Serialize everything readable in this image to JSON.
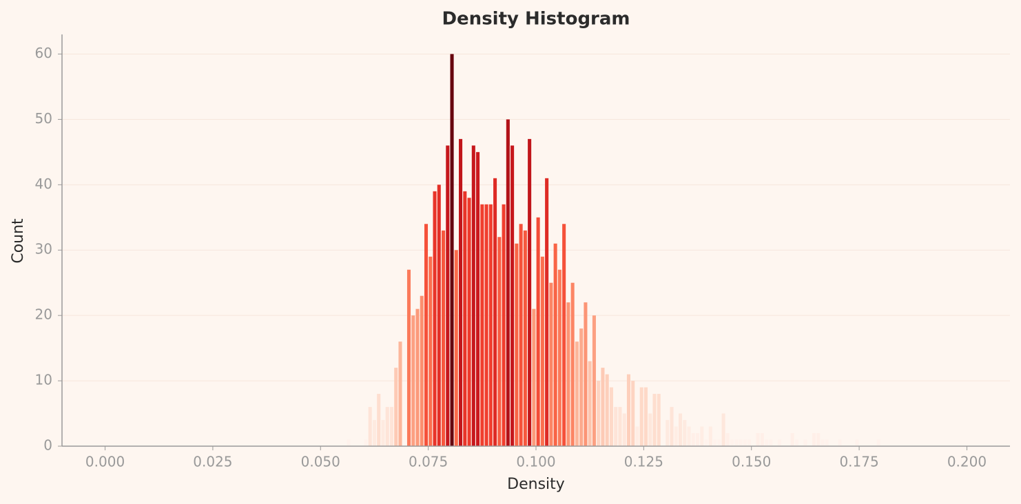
{
  "chart_data": {
    "type": "histogram",
    "title": "Density Histogram",
    "x_label": "Density",
    "y_label": "Count",
    "bins": [
      0.055,
      0.056,
      0.057,
      0.058,
      0.059,
      0.06,
      0.061,
      0.062,
      0.063,
      0.064,
      0.065,
      0.066,
      0.067,
      0.068,
      0.069,
      0.07,
      0.071,
      0.072,
      0.073,
      0.074,
      0.075,
      0.076,
      0.077,
      0.078,
      0.079,
      0.08,
      0.081,
      0.082,
      0.083,
      0.084,
      0.085,
      0.086,
      0.087,
      0.088,
      0.089,
      0.09,
      0.091,
      0.092,
      0.093,
      0.094,
      0.095,
      0.096,
      0.097,
      0.098,
      0.099,
      0.1,
      0.101,
      0.102,
      0.103,
      0.104,
      0.105,
      0.106,
      0.107,
      0.108,
      0.109,
      0.11,
      0.111,
      0.112,
      0.113,
      0.114,
      0.115,
      0.116,
      0.117,
      0.118,
      0.119,
      0.12,
      0.121,
      0.122,
      0.123,
      0.124,
      0.125,
      0.126,
      0.127,
      0.128,
      0.129,
      0.13,
      0.131,
      0.132,
      0.133,
      0.134,
      0.135,
      0.136,
      0.137,
      0.138,
      0.139,
      0.14,
      0.141,
      0.142,
      0.143,
      0.144,
      0.145,
      0.146,
      0.147,
      0.148,
      0.149,
      0.15,
      0.151,
      0.152,
      0.153,
      0.154,
      0.155,
      0.156,
      0.157,
      0.158,
      0.159,
      0.16,
      0.161,
      0.162,
      0.163,
      0.164,
      0.165,
      0.166,
      0.167,
      0.168,
      0.169,
      0.17,
      0.171,
      0.172,
      0.173,
      0.174,
      0.175,
      0.176,
      0.177,
      0.178,
      0.179,
      0.18
    ],
    "values": [
      0,
      1,
      0,
      0,
      0,
      1,
      6,
      4,
      8,
      4,
      6,
      6,
      12,
      16,
      0,
      27,
      20,
      21,
      23,
      34,
      29,
      39,
      40,
      33,
      46,
      60,
      30,
      47,
      39,
      38,
      46,
      45,
      37,
      37,
      37,
      41,
      32,
      37,
      50,
      46,
      31,
      34,
      33,
      47,
      21,
      35,
      29,
      41,
      25,
      31,
      27,
      34,
      22,
      25,
      16,
      18,
      22,
      13,
      20,
      10,
      12,
      11,
      9,
      6,
      6,
      5,
      11,
      10,
      3,
      9,
      9,
      5,
      8,
      8,
      0,
      4,
      6,
      3,
      5,
      4,
      3,
      2,
      2,
      3,
      1,
      3,
      1,
      1,
      5,
      2,
      1,
      1,
      1,
      1,
      1,
      0,
      2,
      2,
      1,
      1,
      0,
      1,
      0,
      0,
      2,
      1,
      0,
      1,
      0,
      2,
      2,
      1,
      1,
      0,
      0,
      1,
      0,
      0,
      0,
      1,
      0,
      0,
      0,
      0,
      1
    ],
    "color_stops": [
      "#fff5f0",
      "#fee0d2",
      "#fcbba1",
      "#fc9272",
      "#fb6a4a",
      "#ef3b2c",
      "#cb181d",
      "#a50f15",
      "#67000d"
    ],
    "xlim": [
      -0.01,
      0.21
    ],
    "xticks": [
      {
        "value": 0,
        "label": "0.000"
      },
      {
        "value": 0.025,
        "label": "0.025"
      },
      {
        "value": 0.05,
        "label": "0.050"
      },
      {
        "value": 0.075,
        "label": "0.075"
      },
      {
        "value": 0.1,
        "label": "0.100"
      },
      {
        "value": 0.125,
        "label": "0.125"
      },
      {
        "value": 0.15,
        "label": "0.150"
      },
      {
        "value": 0.175,
        "label": "0.175"
      },
      {
        "value": 0.2,
        "label": "0.200"
      }
    ],
    "ylim": [
      0,
      63
    ],
    "yticks": [
      0,
      10,
      20,
      30,
      40,
      50,
      60
    ],
    "grid": true
  }
}
